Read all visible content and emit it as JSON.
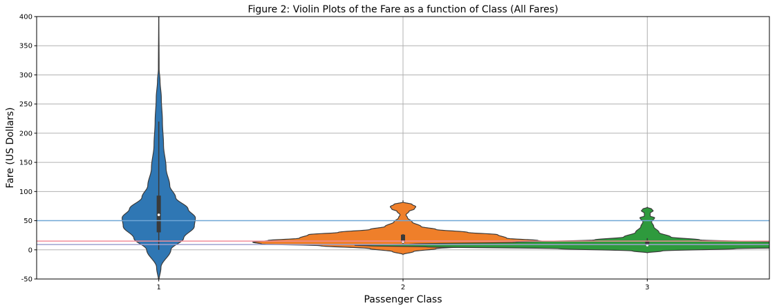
{
  "chart_data": {
    "type": "violin",
    "title": "Figure 2:  Violin Plots of the Fare as a function of Class (All Fares)",
    "xlabel": "Passenger Class",
    "ylabel": "Fare (US Dollars)",
    "categories": [
      "1",
      "2",
      "3"
    ],
    "ylim": [
      -50,
      400
    ],
    "yticks": [
      -50,
      0,
      50,
      100,
      150,
      200,
      250,
      300,
      350,
      400
    ],
    "grid": true,
    "colors": {
      "1": "#2f77b4",
      "2": "#ef7f2a",
      "3": "#2e9a3d"
    },
    "reference_lines": [
      {
        "y": 50,
        "color": "#6fa6d6"
      },
      {
        "y": 15,
        "color": "#f28e99"
      },
      {
        "y": 9,
        "color": "#9ea2cf"
      }
    ],
    "violins": [
      {
        "category": "1",
        "max_half_width": 0.05,
        "profile": [
          [
            -55,
            0
          ],
          [
            -30,
            0.06
          ],
          [
            0,
            0.33
          ],
          [
            20,
            0.68
          ],
          [
            40,
            0.97
          ],
          [
            55,
            1.0
          ],
          [
            70,
            0.8
          ],
          [
            90,
            0.46
          ],
          [
            110,
            0.3
          ],
          [
            140,
            0.2
          ],
          [
            180,
            0.13
          ],
          [
            220,
            0.1
          ],
          [
            260,
            0.07
          ],
          [
            290,
            0.035
          ],
          [
            310,
            0.01
          ],
          [
            400,
            0.003
          ],
          [
            560,
            0
          ]
        ],
        "box": {
          "q1": 30,
          "q3": 93,
          "whisker_low": 0,
          "whisker_high": 220,
          "median": 60
        }
      },
      {
        "category": "2",
        "max_half_width": 0.205,
        "profile": [
          [
            -8,
            0
          ],
          [
            -3,
            0.07
          ],
          [
            2,
            0.22
          ],
          [
            7,
            0.55
          ],
          [
            10,
            0.94
          ],
          [
            13,
            1.0
          ],
          [
            16,
            0.9
          ],
          [
            20,
            0.69
          ],
          [
            26,
            0.63
          ],
          [
            30,
            0.43
          ],
          [
            35,
            0.22
          ],
          [
            40,
            0.12
          ],
          [
            48,
            0.06
          ],
          [
            55,
            0.03
          ],
          [
            60,
            0.02
          ],
          [
            66,
            0.04
          ],
          [
            70,
            0.075
          ],
          [
            74,
            0.085
          ],
          [
            78,
            0.06
          ],
          [
            82,
            0
          ],
          [
            85,
            0
          ]
        ],
        "box": {
          "q1": 13,
          "q3": 26,
          "whisker_low": 10.5,
          "whisker_high": 27,
          "median": 14
        }
      },
      {
        "category": "3",
        "max_half_width": 0.4,
        "profile": [
          [
            -5,
            0
          ],
          [
            -2,
            0.05
          ],
          [
            2,
            0.3
          ],
          [
            5,
            0.75
          ],
          [
            7,
            0.95
          ],
          [
            8,
            1.0
          ],
          [
            10,
            0.8
          ],
          [
            13,
            0.45
          ],
          [
            17,
            0.18
          ],
          [
            22,
            0.08
          ],
          [
            30,
            0.04
          ],
          [
            40,
            0.022
          ],
          [
            48,
            0.015
          ],
          [
            55,
            0.025
          ],
          [
            58,
            0.01
          ],
          [
            63,
            0.01
          ],
          [
            67,
            0.02
          ],
          [
            70,
            0.015
          ],
          [
            73,
            0
          ]
        ],
        "box": {
          "q1": 7.8,
          "q3": 15.5,
          "whisker_low": 6.5,
          "whisker_high": 20,
          "median": 8
        }
      }
    ]
  }
}
